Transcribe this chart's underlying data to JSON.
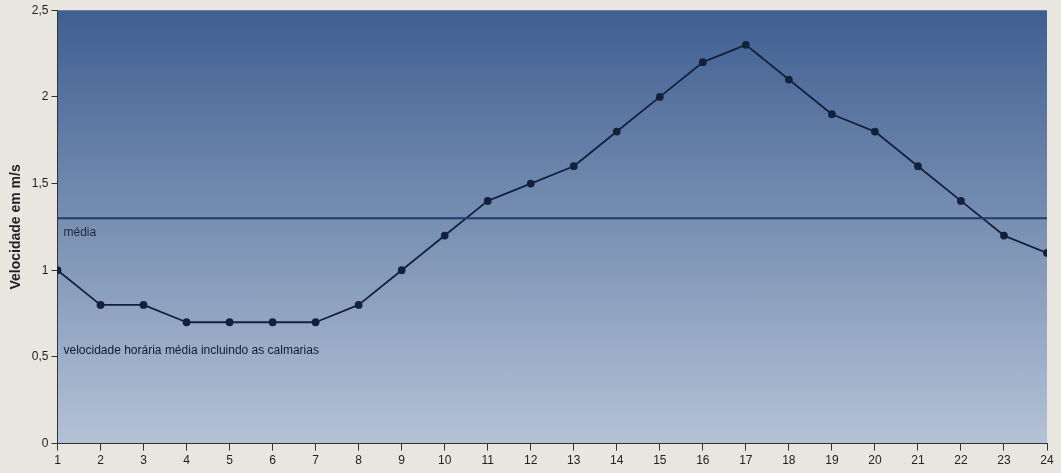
{
  "chart_data": {
    "type": "line",
    "ylabel": "Velocidade em m/s",
    "x": [
      1,
      2,
      3,
      4,
      5,
      6,
      7,
      8,
      9,
      10,
      11,
      12,
      13,
      14,
      15,
      16,
      17,
      18,
      19,
      20,
      21,
      22,
      23,
      24
    ],
    "series": [
      {
        "name": "velocidade horária média incluindo as calmarias",
        "color": "#14213d",
        "values": [
          1.0,
          0.8,
          0.8,
          0.7,
          0.7,
          0.7,
          0.7,
          0.8,
          1.0,
          1.2,
          1.4,
          1.5,
          1.6,
          1.8,
          2.0,
          2.2,
          2.3,
          2.1,
          1.9,
          1.8,
          1.6,
          1.4,
          1.2,
          1.1
        ]
      }
    ],
    "xlim": [
      1,
      24
    ],
    "xticks": [
      1,
      2,
      3,
      4,
      5,
      6,
      7,
      8,
      9,
      10,
      11,
      12,
      13,
      14,
      15,
      16,
      17,
      18,
      19,
      20,
      21,
      22,
      23,
      24
    ],
    "ylim": [
      0,
      2.5
    ],
    "yticks": [
      {
        "value": 0,
        "label": "0"
      },
      {
        "value": 0.5,
        "label": "0,5"
      },
      {
        "value": 1,
        "label": "1"
      },
      {
        "value": 1.5,
        "label": "1,5"
      },
      {
        "value": 2,
        "label": "2"
      },
      {
        "value": 2.5,
        "label": "2,5"
      }
    ],
    "ref_lines": [
      {
        "axis": "y",
        "value": 1.3,
        "label": "média",
        "color": "#1f3a6e"
      }
    ],
    "marker": "circle",
    "line_style": "solid",
    "grid": false,
    "legend": false
  }
}
